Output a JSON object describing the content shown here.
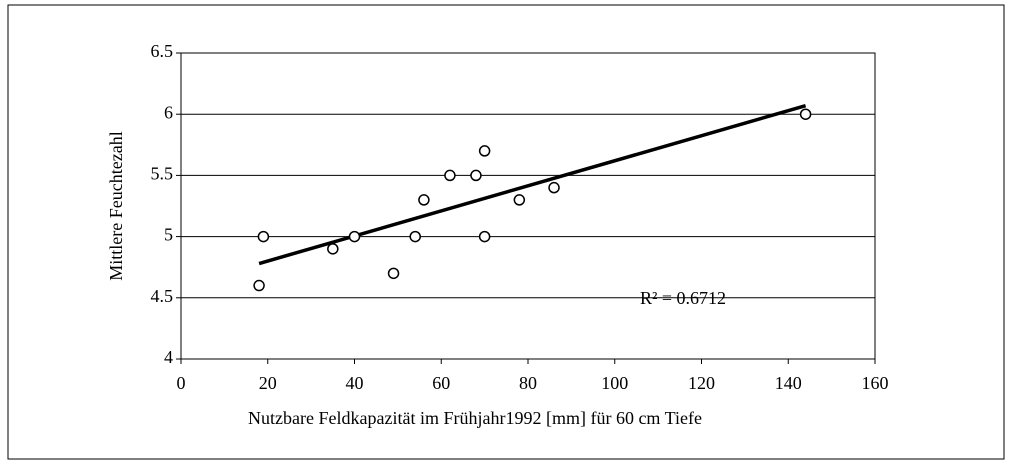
{
  "chart_data": {
    "type": "scatter",
    "xlabel": "Nutzbare Feldkapazität im Frühjahr1992 [mm] für 60 cm Tiefe",
    "ylabel": "Mittlere Feuchtezahl",
    "x": [
      18,
      19,
      35,
      40,
      49,
      54,
      56,
      62,
      68,
      70,
      70,
      78,
      86,
      144
    ],
    "series": [
      {
        "name": "Mittlere Feuchtezahl",
        "color": "#000000",
        "values": [
          4.6,
          5.0,
          4.9,
          5.0,
          4.7,
          5.0,
          5.3,
          5.5,
          5.5,
          5.7,
          5.0,
          5.3,
          5.4,
          6.0
        ]
      }
    ],
    "trendline": {
      "x": [
        18,
        144
      ],
      "values": [
        4.78,
        6.07
      ]
    },
    "annotation": "R² = 0.6712",
    "xlim": [
      0,
      160
    ],
    "xticks": [
      0,
      20,
      40,
      60,
      80,
      100,
      120,
      140,
      160
    ],
    "ylim": [
      4,
      6.5
    ],
    "yticks": [
      4,
      4.5,
      5,
      5.5,
      6,
      6.5
    ],
    "grid": true
  }
}
